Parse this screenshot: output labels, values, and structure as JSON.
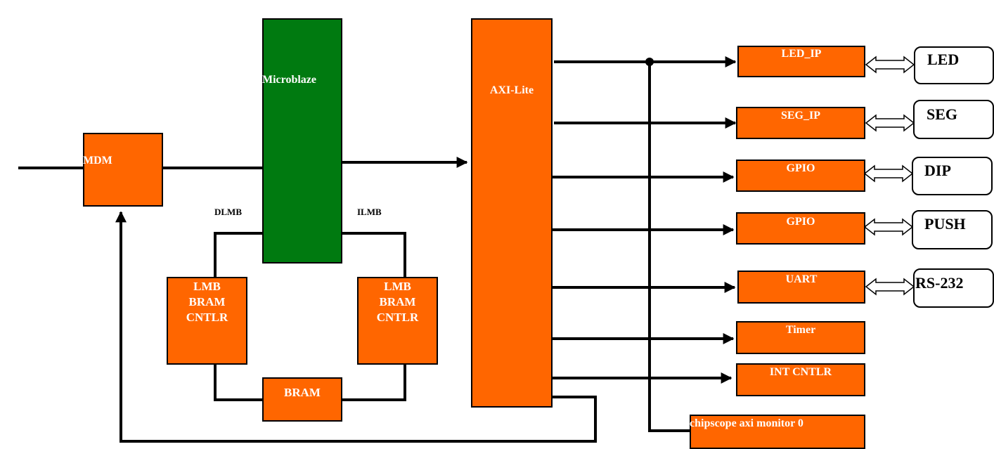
{
  "blocks": {
    "mdm": "MDM",
    "microblaze": "Microblaze",
    "axi_lite": "AXI-Lite",
    "lmb_left": [
      "LMB",
      "BRAM",
      "CNTLR"
    ],
    "lmb_right": [
      "LMB",
      "BRAM",
      "CNTLR"
    ],
    "bram": "BRAM"
  },
  "bus_labels": {
    "dlmb": "DLMB",
    "ilmb": "ILMB"
  },
  "ips": {
    "led_ip": "LED_IP",
    "seg_ip": "SEG_IP",
    "gpio_dip": "GPIO",
    "gpio_push": "GPIO",
    "uart": "UART",
    "timer": "Timer",
    "int_cntlr": "INT CNTLR",
    "chipscope": "chipscope axi monitor 0"
  },
  "peripherals": {
    "led": "LED",
    "seg": "SEG",
    "dip": "DIP",
    "push": "PUSH",
    "rs232": "RS-232"
  },
  "colors": {
    "block_orange": "#ff6600",
    "cpu_green": "#007a10",
    "line": "#000000"
  }
}
